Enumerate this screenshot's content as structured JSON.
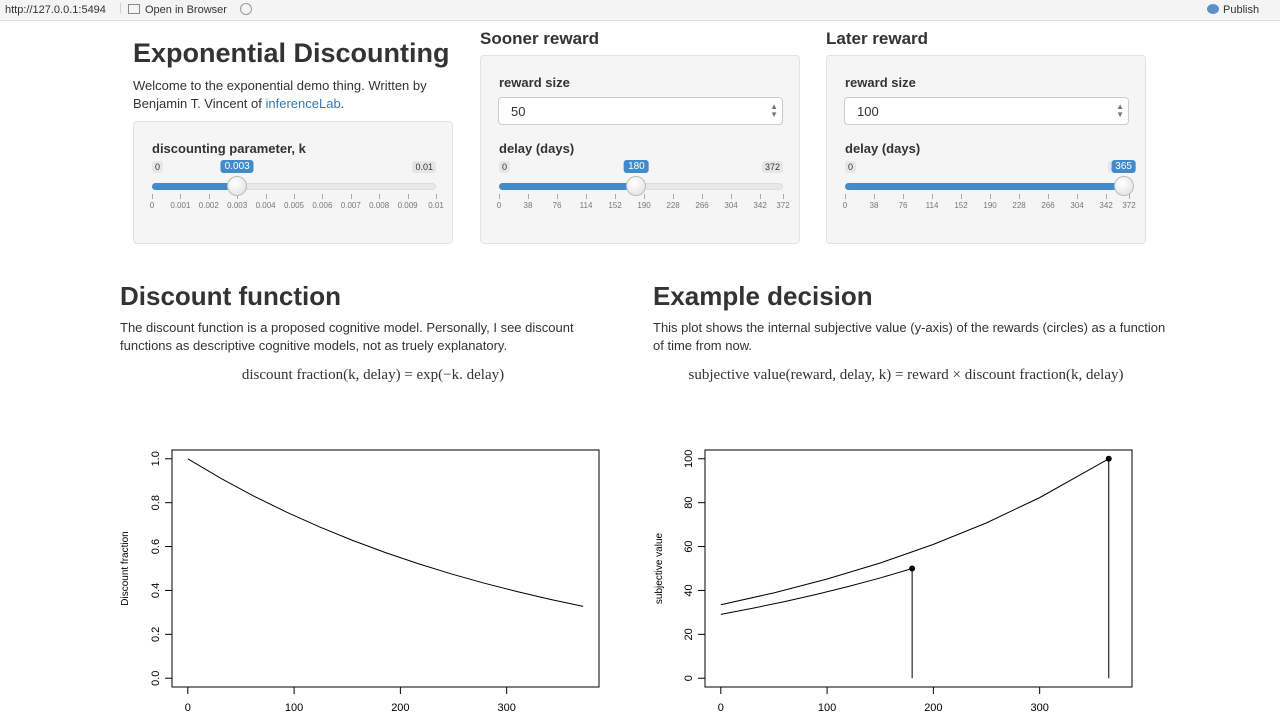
{
  "browser_bar": {
    "url": "http://127.0.0.1:5494",
    "open": "Open in Browser",
    "publish": "Publish"
  },
  "header": {
    "title": "Exponential Discounting",
    "intro_before": "Welcome to the exponential demo thing. Written by Benjamin T. Vincent of ",
    "intro_link": "inferenceLab",
    "intro_after": "."
  },
  "k_panel": {
    "label": "discounting parameter, k",
    "slider": {
      "min": 0,
      "max": 0.01,
      "value": 0.003,
      "ticks": [
        0,
        0.001,
        0.002,
        0.003,
        0.004,
        0.005,
        0.006,
        0.007,
        0.008,
        0.009,
        0.01
      ]
    }
  },
  "sooner": {
    "title": "Sooner reward",
    "size_label": "reward size",
    "size": 50,
    "delay_label": "delay (days)",
    "slider": {
      "min": 0,
      "max": 372,
      "value": 180,
      "ticks": [
        0,
        38,
        76,
        114,
        152,
        190,
        228,
        266,
        304,
        342,
        372
      ]
    }
  },
  "later": {
    "title": "Later reward",
    "size_label": "reward size",
    "size": 100,
    "delay_label": "delay (days)",
    "slider": {
      "min": 0,
      "max": 372,
      "value": 365,
      "ticks": [
        0,
        38,
        76,
        114,
        152,
        190,
        228,
        266,
        304,
        342,
        372
      ]
    }
  },
  "discount_section": {
    "title": "Discount function",
    "text": "The discount function is a proposed cognitive model. Personally, I see discount functions as descriptive cognitive models, not as truely explanatory.",
    "formula": "discount fraction(k, delay) = exp(−k. delay)"
  },
  "decision_section": {
    "title": "Example decision",
    "text": "This plot shows the internal subjective value (y-axis) of the rewards (circles) as a function of time from now.",
    "formula": "subjective value(reward, delay, k) = reward × discount fraction(k, delay)"
  },
  "plots": [
    {
      "type": "line",
      "ylabel": "Discount fraction",
      "color": "#000000",
      "xlim": [
        -14.88,
        386.88
      ],
      "ylim": [
        -0.04,
        1.04
      ],
      "xticks": [
        0,
        100,
        200,
        300
      ],
      "yticks": [
        {
          "value": 0,
          "label": "0.0"
        },
        0.2,
        0.4,
        0.6,
        0.8,
        {
          "value": 1,
          "label": "1.0"
        }
      ],
      "series": [
        {
          "x": [
            0,
            31,
            62,
            93,
            124,
            155,
            186,
            217,
            248,
            279,
            310,
            341,
            372
          ],
          "values": [
            1,
            0.9112,
            0.8303,
            0.7565,
            0.6894,
            0.6281,
            0.5724,
            0.5215,
            0.4752,
            0.433,
            0.3946,
            0.3595,
            0.3276
          ]
        }
      ]
    },
    {
      "type": "line",
      "ylabel": "subjective value",
      "color": "#000000",
      "xlim": [
        -14.88,
        386.88
      ],
      "ylim": [
        -4,
        104
      ],
      "xticks": [
        0,
        100,
        200,
        300
      ],
      "yticks": [
        0,
        20,
        40,
        60,
        80,
        100
      ],
      "series": [
        {
          "x": [
            0,
            30,
            60,
            90,
            120,
            150,
            180
          ],
          "values": [
            29.1,
            31.9,
            34.9,
            38.2,
            41.8,
            45.7,
            50
          ]
        },
        {
          "x": [
            0,
            50,
            100,
            150,
            200,
            250,
            300,
            365
          ],
          "values": [
            33.5,
            38.9,
            45.2,
            52.5,
            61,
            70.8,
            82.3,
            100
          ]
        }
      ],
      "points": {
        "x": [
          180,
          365
        ],
        "values": [
          50,
          100
        ]
      }
    }
  ]
}
